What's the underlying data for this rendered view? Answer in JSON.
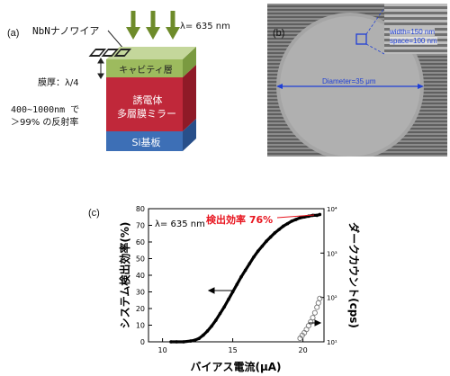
{
  "panel_a": {
    "label": "(a)",
    "nanowire_label": "NbNナノワイア",
    "wavelength_label": "λ= 635 nm",
    "thickness_label": "膜厚：λ/4",
    "cavity_layer": "キャビティ層",
    "mirror_line1": "誘電体",
    "mirror_line2": "多層膜ミラー",
    "substrate": "Si基板",
    "reflect_line1": "400~1000nm で",
    "reflect_line2": "＞99% の反射率",
    "colors": {
      "cavity": "#9dbb5e",
      "mirror": "#c0283a",
      "substrate": "#3d6fb6",
      "arrow": "#6e8b2a"
    }
  },
  "panel_b": {
    "label": "(b)",
    "width_label": "width=150 nm",
    "space_label": "space=100 nm",
    "diameter_label": "Diameter=35 μm",
    "colors": {
      "annotation": "#1f3fd6"
    }
  },
  "panel_c": {
    "label": "(c)",
    "wavelength_label": "λ= 635 nm",
    "efficiency_label": "検出効率 76%",
    "colors": {
      "efficiency_label": "#e8141e",
      "curve": "#000000"
    }
  },
  "chart_data": {
    "type": "scatter",
    "xlabel": "バイアス電流(μA)",
    "ylabel": "システム検出効率(%)",
    "y2label": "ダークカウント(cps)",
    "xlim": [
      9,
      21.5
    ],
    "ylim": [
      0,
      80
    ],
    "y2lim_log10": [
      1,
      4
    ],
    "y2scale": "log",
    "x_ticks": [
      "10",
      "15",
      "20"
    ],
    "y_ticks": [
      "0",
      "10",
      "20",
      "30",
      "40",
      "50",
      "60",
      "70",
      "80"
    ],
    "y2_ticks": [
      "10¹",
      "10²",
      "10³",
      "10⁴"
    ],
    "series": [
      {
        "axis": "left",
        "marker": "filled",
        "x": [
          10.6,
          11.0,
          11.5,
          12.0,
          12.3,
          12.6,
          12.9,
          13.2,
          13.5,
          13.8,
          14.1,
          14.4,
          14.7,
          15.0,
          15.3,
          15.6,
          15.9,
          16.2,
          16.5,
          16.8,
          17.1,
          17.4,
          17.7,
          18.0,
          18.3,
          18.6,
          18.9,
          19.2,
          19.5,
          19.8,
          20.1,
          20.4,
          20.7,
          21.0,
          21.2
        ],
        "values": [
          0,
          0,
          0,
          0.5,
          1,
          2,
          4,
          6.5,
          9.5,
          13,
          17,
          21,
          25.5,
          30,
          34.5,
          39,
          43,
          47,
          51,
          54.5,
          57.5,
          60.5,
          63,
          65.5,
          67.5,
          69.5,
          71,
          72.5,
          73.5,
          74.5,
          75,
          75.5,
          76,
          76,
          76.5
        ]
      },
      {
        "axis": "right",
        "marker": "open",
        "x": [
          19.8,
          19.95,
          20.1,
          20.25,
          20.4,
          20.55,
          20.7,
          20.85,
          21.0,
          21.1,
          21.2
        ],
        "values": [
          12,
          14,
          16,
          19,
          23,
          28,
          35,
          45,
          60,
          75,
          95
        ]
      }
    ],
    "annotations": [
      "λ= 635 nm",
      "検出効率 76%"
    ]
  }
}
